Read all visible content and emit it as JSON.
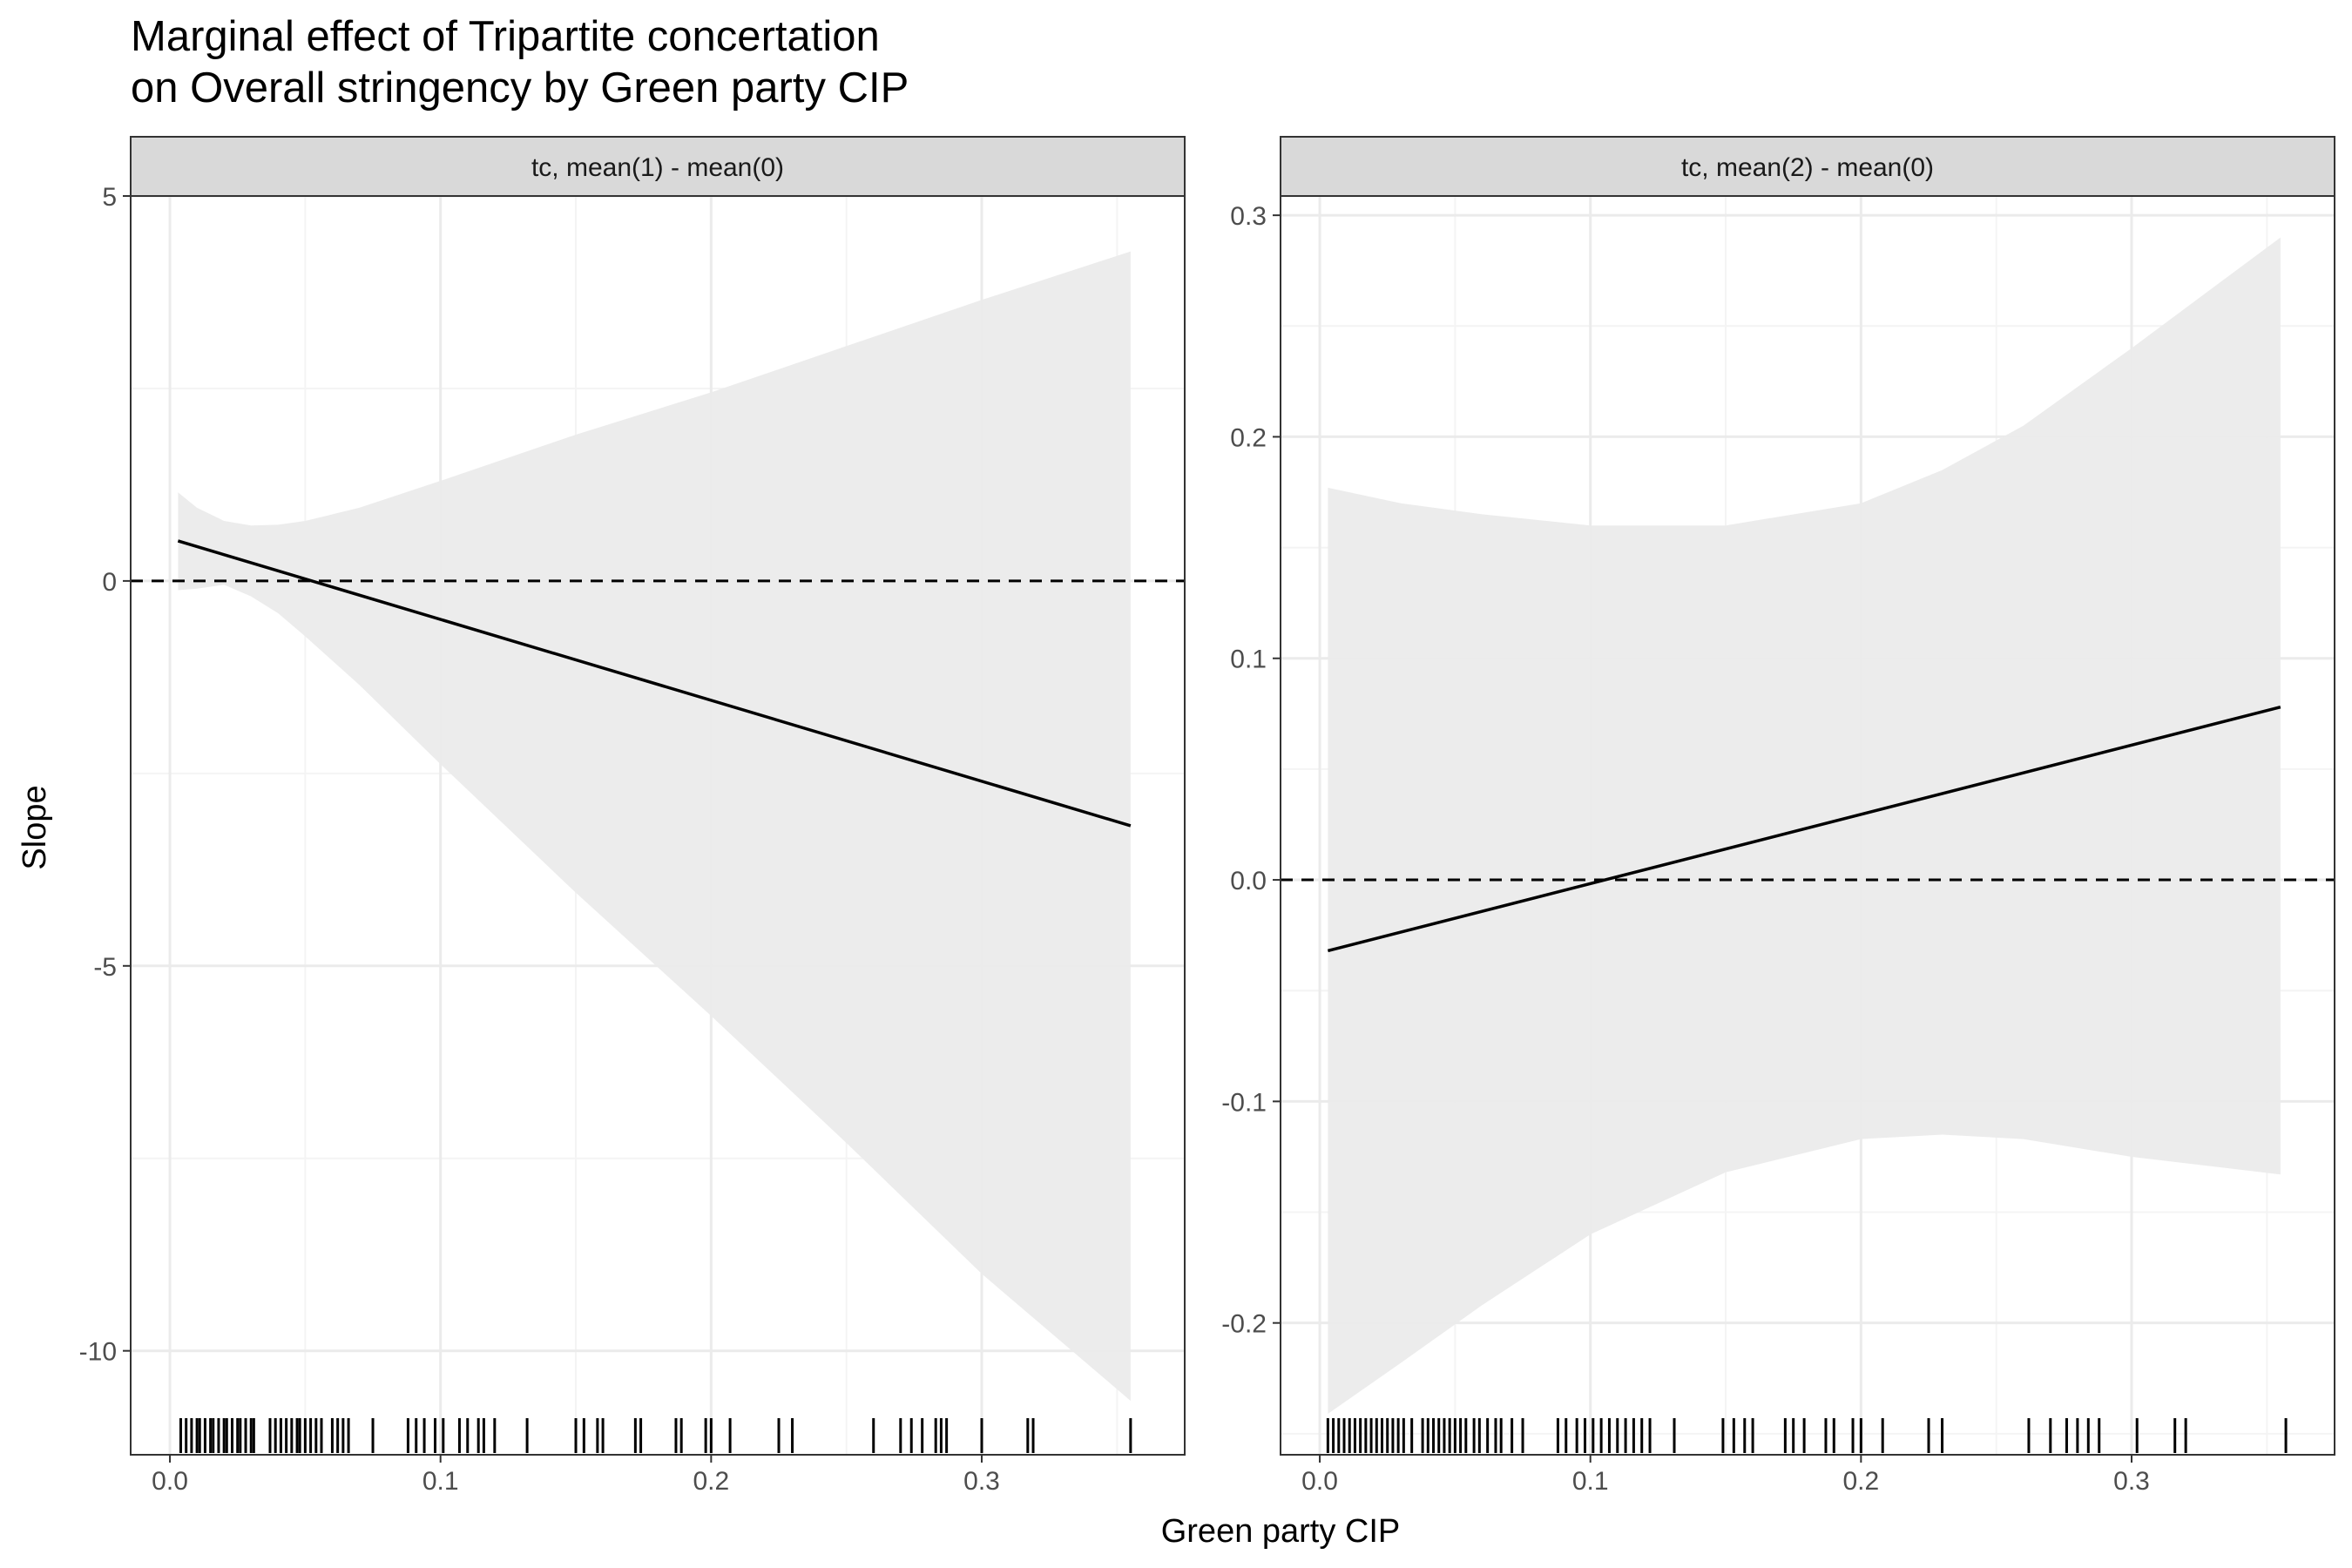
{
  "chart_data": {
    "type": "line",
    "title_lines": [
      "Marginal effect of Tripartite concertation",
      "on Overall stringency by Green party CIP"
    ],
    "xlabel": "Green party CIP",
    "ylabel": "Slope",
    "reference_line_y": 0,
    "grid": true,
    "colors": {
      "line": "#000000",
      "ribbon": "#ebebeb",
      "strip": "#d9d9d9",
      "grid_major": "#ebebeb",
      "grid_minor": "#f4f4f4",
      "border": "#333333"
    },
    "panels": [
      {
        "strip_label": "tc, mean(1) - mean(0)",
        "xlim": [
          -0.0145,
          0.375
        ],
        "ylim": [
          -11.35,
          5.0
        ],
        "x_ticks": [
          0.0,
          0.1,
          0.2,
          0.3
        ],
        "x_tick_labels": [
          "0.0",
          "0.1",
          "0.2",
          "0.3"
        ],
        "y_ticks": [
          5,
          0,
          -5,
          -10
        ],
        "y_tick_labels": [
          "5",
          "0",
          "-5",
          "-10"
        ],
        "y_minor_ticks": [
          2.5,
          -2.5,
          -7.5
        ],
        "line": {
          "x": [
            0.003,
            0.355
          ],
          "y": [
            0.52,
            -3.18
          ]
        },
        "ribbon": {
          "x": [
            0.003,
            0.01,
            0.02,
            0.03,
            0.04,
            0.05,
            0.07,
            0.1,
            0.15,
            0.2,
            0.25,
            0.3,
            0.355
          ],
          "upper": [
            1.15,
            0.95,
            0.78,
            0.72,
            0.73,
            0.78,
            0.95,
            1.3,
            1.9,
            2.45,
            3.05,
            3.65,
            4.28
          ],
          "lower": [
            -0.12,
            -0.1,
            -0.05,
            -0.2,
            -0.42,
            -0.72,
            -1.35,
            -2.38,
            -4.05,
            -5.65,
            -7.3,
            -9.0,
            -10.65
          ]
        },
        "rug": [
          0.004,
          0.006,
          0.008,
          0.01,
          0.011,
          0.013,
          0.015,
          0.016,
          0.018,
          0.02,
          0.021,
          0.023,
          0.025,
          0.026,
          0.028,
          0.03,
          0.031,
          0.037,
          0.039,
          0.041,
          0.043,
          0.045,
          0.047,
          0.048,
          0.05,
          0.052,
          0.054,
          0.056,
          0.06,
          0.062,
          0.064,
          0.066,
          0.075,
          0.088,
          0.091,
          0.094,
          0.098,
          0.101,
          0.107,
          0.11,
          0.114,
          0.116,
          0.12,
          0.132,
          0.15,
          0.153,
          0.158,
          0.16,
          0.172,
          0.174,
          0.187,
          0.189,
          0.198,
          0.2,
          0.207,
          0.225,
          0.23,
          0.26,
          0.27,
          0.274,
          0.278,
          0.283,
          0.285,
          0.287,
          0.3,
          0.317,
          0.319,
          0.355
        ]
      },
      {
        "strip_label": "tc, mean(2) - mean(0)",
        "xlim": [
          -0.0145,
          0.375
        ],
        "ylim": [
          -0.2595,
          0.3087
        ],
        "x_ticks": [
          0.0,
          0.1,
          0.2,
          0.3
        ],
        "x_tick_labels": [
          "0.0",
          "0.1",
          "0.2",
          "0.3"
        ],
        "y_ticks": [
          0.3,
          0.2,
          0.1,
          0.0,
          -0.1,
          -0.2
        ],
        "y_tick_labels": [
          "0.3",
          "0.2",
          "0.1",
          "0.0",
          "-0.1",
          "-0.2"
        ],
        "y_minor_ticks": [
          0.25,
          0.15,
          0.05,
          -0.05,
          -0.15,
          -0.25
        ],
        "line": {
          "x": [
            0.003,
            0.355
          ],
          "y": [
            -0.032,
            0.078
          ]
        },
        "ribbon": {
          "x": [
            0.003,
            0.03,
            0.06,
            0.1,
            0.15,
            0.2,
            0.23,
            0.26,
            0.3,
            0.355
          ],
          "upper": [
            0.177,
            0.17,
            0.165,
            0.16,
            0.16,
            0.17,
            0.185,
            0.205,
            0.24,
            0.29
          ],
          "lower": [
            -0.241,
            -0.218,
            -0.192,
            -0.16,
            -0.132,
            -0.117,
            -0.115,
            -0.117,
            -0.125,
            -0.133
          ]
        },
        "rug": [
          0.003,
          0.005,
          0.007,
          0.009,
          0.011,
          0.013,
          0.015,
          0.017,
          0.019,
          0.021,
          0.023,
          0.025,
          0.027,
          0.029,
          0.031,
          0.034,
          0.038,
          0.04,
          0.042,
          0.044,
          0.046,
          0.048,
          0.05,
          0.052,
          0.054,
          0.057,
          0.059,
          0.062,
          0.065,
          0.067,
          0.071,
          0.075,
          0.088,
          0.091,
          0.095,
          0.098,
          0.101,
          0.104,
          0.107,
          0.11,
          0.113,
          0.116,
          0.119,
          0.122,
          0.131,
          0.149,
          0.153,
          0.157,
          0.16,
          0.172,
          0.175,
          0.179,
          0.187,
          0.19,
          0.197,
          0.2,
          0.208,
          0.225,
          0.23,
          0.262,
          0.27,
          0.276,
          0.28,
          0.284,
          0.288,
          0.302,
          0.316,
          0.32,
          0.357
        ]
      }
    ]
  }
}
